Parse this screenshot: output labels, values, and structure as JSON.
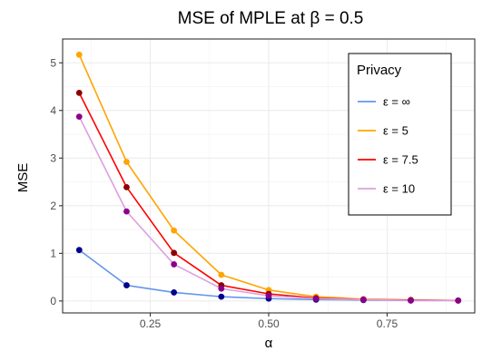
{
  "chart_data": {
    "type": "line",
    "title": "MSE of MPLE at β = 0.5",
    "xlabel": "α",
    "ylabel": "MSE",
    "xlim": [
      0.065,
      0.935
    ],
    "ylim": [
      -0.25,
      5.5
    ],
    "xticks": [
      0.25,
      0.5,
      0.75
    ],
    "xtick_labels": [
      "0.25",
      "0.50",
      "0.75"
    ],
    "yticks": [
      0,
      1,
      2,
      3,
      4,
      5
    ],
    "ytick_labels": [
      "0",
      "1",
      "2",
      "3",
      "4",
      "5"
    ],
    "grid": true,
    "legend": {
      "title": "Privacy",
      "position": "top-right"
    },
    "x": [
      0.1,
      0.2,
      0.3,
      0.4,
      0.5,
      0.6,
      0.7,
      0.8,
      0.9
    ],
    "series": [
      {
        "name": "ε = ∞",
        "color": "#6495ED",
        "point_color": "#00008B",
        "values": [
          1.07,
          0.33,
          0.18,
          0.09,
          0.05,
          0.03,
          0.02,
          0.01,
          0.01
        ]
      },
      {
        "name": "ε = 5",
        "color": "#FFA500",
        "point_color": "#FFA500",
        "values": [
          5.17,
          2.92,
          1.48,
          0.55,
          0.23,
          0.09,
          0.04,
          0.02,
          0.01
        ]
      },
      {
        "name": "ε = 7.5",
        "color": "#FF0000",
        "point_color": "#8B0000",
        "values": [
          4.37,
          2.39,
          1.01,
          0.33,
          0.15,
          0.06,
          0.03,
          0.02,
          0.01
        ]
      },
      {
        "name": "ε = 10",
        "color": "#DDA0DD",
        "point_color": "#8B008B",
        "values": [
          3.87,
          1.88,
          0.77,
          0.26,
          0.11,
          0.05,
          0.03,
          0.01,
          0.01
        ]
      }
    ]
  }
}
